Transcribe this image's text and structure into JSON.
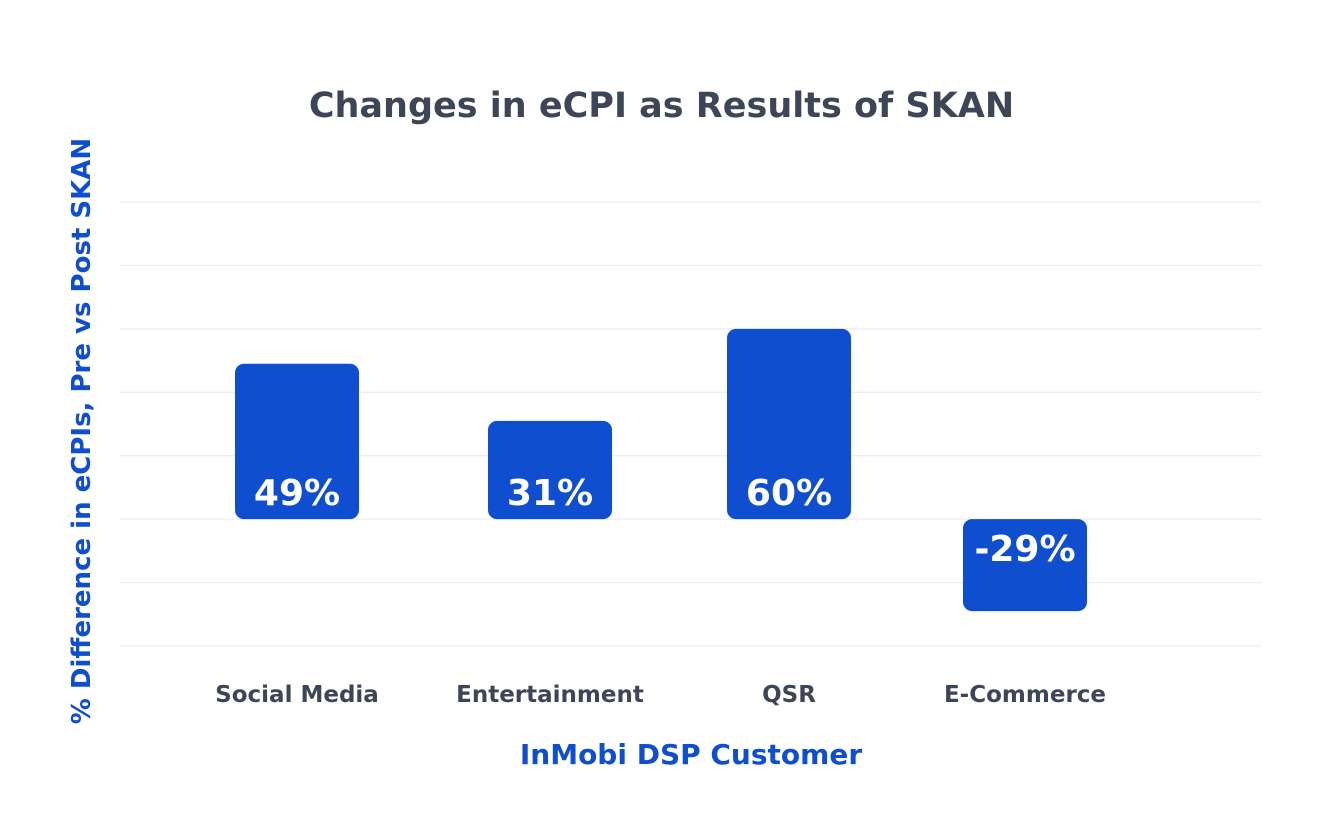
{
  "chart_data": {
    "type": "bar",
    "title": "Changes in eCPI as Results of SKAN",
    "xlabel": "InMobi DSP Customer",
    "ylabel": "% Difference in eCPIs, Pre vs Post SKAN",
    "categories": [
      "Social Media",
      "Entertainment",
      "QSR",
      "E-Commerce"
    ],
    "values": [
      49,
      31,
      60,
      -29
    ],
    "data_labels": [
      "49%",
      "31%",
      "60%",
      "-29%"
    ],
    "ylim": [
      -40,
      100
    ],
    "grid": true,
    "bar_color": "#0f4fcf",
    "label_color": "#ffffff",
    "tick_color": "#3d4657",
    "grid_color": "#e6e8ec"
  }
}
